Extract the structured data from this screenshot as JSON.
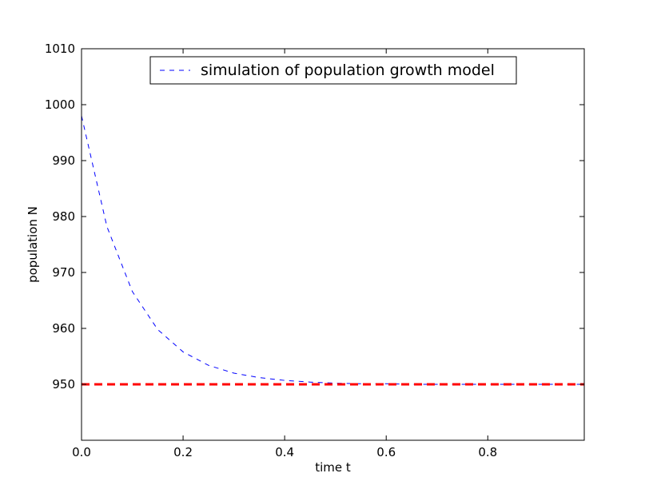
{
  "chart_data": {
    "type": "line",
    "title": "",
    "xlabel": "time t",
    "ylabel": "population N",
    "xlim": [
      0.0,
      0.99
    ],
    "ylim": [
      940,
      1010
    ],
    "x_ticks": [
      0.0,
      0.2,
      0.4,
      0.6,
      0.8
    ],
    "x_tick_labels": [
      "0.0",
      "0.2",
      "0.4",
      "0.6",
      "0.8"
    ],
    "y_ticks": [
      950,
      960,
      970,
      980,
      990,
      1000,
      1010
    ],
    "y_tick_labels": [
      "950",
      "960",
      "970",
      "980",
      "990",
      "1000",
      "1010"
    ],
    "grid": false,
    "legend": {
      "placement": "upper-center"
    },
    "series": [
      {
        "name": "simulation of population growth model",
        "style": "dashed",
        "color": "#0000ff",
        "x": [
          0.0,
          0.05,
          0.1,
          0.15,
          0.2,
          0.25,
          0.3,
          0.35,
          0.4,
          0.45,
          0.5,
          0.55,
          0.6,
          0.65,
          0.7,
          0.75,
          0.8,
          0.85,
          0.9,
          0.95,
          0.99
        ],
        "y": [
          998.0,
          978.2,
          966.6,
          959.8,
          955.8,
          953.4,
          952.0,
          951.2,
          950.7,
          950.4,
          950.2,
          950.1,
          950.1,
          950.0,
          950.0,
          950.0,
          950.0,
          950.0,
          950.0,
          950.0,
          950.0
        ]
      },
      {
        "style": "dashed-thick",
        "color": "#ff0000",
        "x": [
          0.0,
          0.99
        ],
        "y": [
          950,
          950
        ]
      }
    ]
  }
}
